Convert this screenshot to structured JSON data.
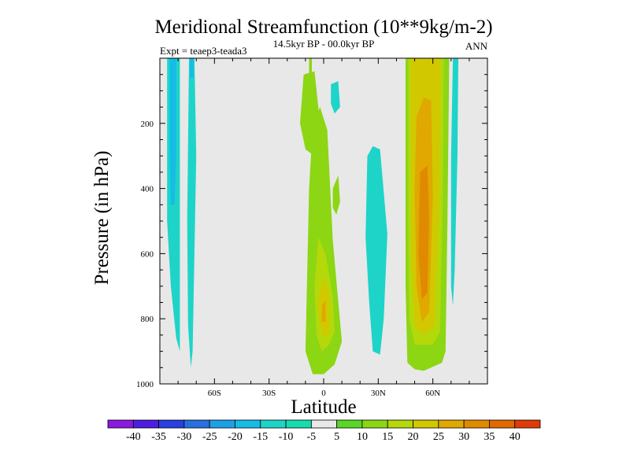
{
  "chart_data": {
    "type": "heatmap",
    "title": "Meridional Streamfunction (10**9kg/m-2)",
    "subtitle_center": "14.5kyr BP - 00.0kyr BP",
    "subtitle_left": "Expt = teaep3-teada3",
    "subtitle_right": "ANN",
    "xlabel": "Latitude",
    "ylabel": "Pressure (in hPa)",
    "xlim": [
      -90,
      90
    ],
    "ylim": [
      0,
      1000
    ],
    "y_inverted": true,
    "x_ticks": [
      {
        "value": -60,
        "label": "60S"
      },
      {
        "value": -30,
        "label": "30S"
      },
      {
        "value": 0,
        "label": "0"
      },
      {
        "value": 30,
        "label": "30N"
      },
      {
        "value": 60,
        "label": "60N"
      }
    ],
    "y_ticks": [
      {
        "value": 200,
        "label": "200"
      },
      {
        "value": 400,
        "label": "400"
      },
      {
        "value": 600,
        "label": "600"
      },
      {
        "value": 800,
        "label": "800"
      },
      {
        "value": 1000,
        "label": "1000"
      }
    ],
    "background_color": "#e8e8e8",
    "colorbar": {
      "levels": [
        "-40",
        "-35",
        "-30",
        "-25",
        "-20",
        "-15",
        "-10",
        "-5",
        "5",
        "10",
        "15",
        "20",
        "25",
        "30",
        "35",
        "40"
      ],
      "colors": [
        "#8a1ae0",
        "#4d1ee0",
        "#2840e0",
        "#2870e0",
        "#1ea0e6",
        "#14bce6",
        "#1ed4c8",
        "#16dcae",
        "#e8e8e8",
        "#5ad628",
        "#8cd614",
        "#b4d80a",
        "#d2c800",
        "#e0a800",
        "#e08a00",
        "#e06a00",
        "#e03c0a"
      ]
    },
    "regions": [
      {
        "name": "sh-band-1",
        "level": -10,
        "points": [
          [
            -86,
            0
          ],
          [
            -79,
            0
          ],
          [
            -79,
            900
          ],
          [
            -81,
            860
          ],
          [
            -84,
            700
          ],
          [
            -86,
            500
          ]
        ]
      },
      {
        "name": "sh-band-1-core",
        "level": -15,
        "points": [
          [
            -84.5,
            0
          ],
          [
            -81,
            0
          ],
          [
            -81,
            300
          ],
          [
            -82,
            450
          ],
          [
            -84,
            450
          ],
          [
            -84.5,
            300
          ]
        ]
      },
      {
        "name": "sh-band-2",
        "level": -10,
        "points": [
          [
            -74,
            0
          ],
          [
            -71,
            0
          ],
          [
            -70,
            300
          ],
          [
            -71,
            600
          ],
          [
            -72,
            900
          ],
          [
            -73,
            950
          ],
          [
            -74.5,
            820
          ],
          [
            -75,
            500
          ]
        ]
      },
      {
        "name": "sh-band-2-core",
        "level": -15,
        "points": [
          [
            -73.5,
            0
          ],
          [
            -71.5,
            0
          ],
          [
            -71.5,
            60
          ],
          [
            -73.5,
            60
          ]
        ]
      },
      {
        "name": "tropics-upper-left",
        "level": 10,
        "points": [
          [
            -11,
            50
          ],
          [
            -5,
            40
          ],
          [
            -2,
            200
          ],
          [
            -5,
            300
          ],
          [
            -10,
            280
          ],
          [
            -13,
            200
          ]
        ]
      },
      {
        "name": "tropics-upper-stem",
        "level": 10,
        "points": [
          [
            -8,
            0
          ],
          [
            -6.5,
            0
          ],
          [
            -6.5,
            90
          ],
          [
            -8,
            90
          ]
        ]
      },
      {
        "name": "tropics-upper-cap",
        "level": -10,
        "points": [
          [
            4,
            80
          ],
          [
            8,
            70
          ],
          [
            9,
            150
          ],
          [
            6,
            170
          ],
          [
            4,
            140
          ]
        ]
      },
      {
        "name": "hadley-main",
        "level": 10,
        "points": [
          [
            -8,
            400
          ],
          [
            -6,
            210
          ],
          [
            -2,
            150
          ],
          [
            2,
            220
          ],
          [
            5,
            560
          ],
          [
            10,
            870
          ],
          [
            6,
            940
          ],
          [
            0,
            970
          ],
          [
            -6,
            970
          ],
          [
            -10,
            900
          ]
        ]
      },
      {
        "name": "hadley-lobe",
        "level": 10,
        "points": [
          [
            5,
            400
          ],
          [
            8,
            360
          ],
          [
            9,
            440
          ],
          [
            7,
            480
          ],
          [
            5,
            460
          ]
        ]
      },
      {
        "name": "hadley-l15",
        "level": 15,
        "points": [
          [
            -5,
            700
          ],
          [
            -3,
            550
          ],
          [
            1,
            600
          ],
          [
            5,
            730
          ],
          [
            6,
            840
          ],
          [
            3,
            880
          ],
          [
            -1,
            900
          ],
          [
            -4,
            850
          ]
        ]
      },
      {
        "name": "hadley-l20",
        "level": 20,
        "points": [
          [
            -3,
            750
          ],
          [
            0,
            670
          ],
          [
            3,
            730
          ],
          [
            3,
            840
          ],
          [
            0,
            860
          ],
          [
            -2,
            820
          ]
        ]
      },
      {
        "name": "hadley-l25",
        "level": 25,
        "points": [
          [
            -1,
            760
          ],
          [
            1,
            740
          ],
          [
            1,
            810
          ],
          [
            -1,
            810
          ]
        ]
      },
      {
        "name": "nh-neg-cell",
        "level": -10,
        "points": [
          [
            24,
            300
          ],
          [
            27,
            270
          ],
          [
            31,
            280
          ],
          [
            35,
            540
          ],
          [
            33,
            800
          ],
          [
            31,
            910
          ],
          [
            27,
            900
          ],
          [
            25,
            750
          ],
          [
            23,
            550
          ]
        ]
      },
      {
        "name": "nh-ferrel",
        "level": 10,
        "points": [
          [
            45,
            0
          ],
          [
            69,
            0
          ],
          [
            68,
            500
          ],
          [
            67,
            900
          ],
          [
            65,
            935
          ],
          [
            55,
            960
          ],
          [
            50,
            955
          ],
          [
            46,
            935
          ],
          [
            45,
            700
          ]
        ]
      },
      {
        "name": "nh-ferrel-l15",
        "level": 15,
        "points": [
          [
            46.5,
            0
          ],
          [
            66,
            0
          ],
          [
            65.5,
            400
          ],
          [
            64,
            840
          ],
          [
            60,
            880
          ],
          [
            50,
            880
          ],
          [
            47,
            800
          ],
          [
            46.5,
            500
          ]
        ]
      },
      {
        "name": "nh-ferrel-l20",
        "level": 20,
        "points": [
          [
            48,
            0
          ],
          [
            64,
            0
          ],
          [
            63.5,
            400
          ],
          [
            61,
            820
          ],
          [
            55,
            850
          ],
          [
            50,
            820
          ],
          [
            48,
            600
          ]
        ]
      },
      {
        "name": "nh-ferrel-l25",
        "level": 25,
        "points": [
          [
            51,
            180
          ],
          [
            55,
            120
          ],
          [
            59,
            130
          ],
          [
            60,
            420
          ],
          [
            58,
            780
          ],
          [
            54,
            810
          ],
          [
            51,
            700
          ],
          [
            50,
            400
          ]
        ]
      },
      {
        "name": "nh-ferrel-l30",
        "level": 30,
        "points": [
          [
            53,
            350
          ],
          [
            57,
            330
          ],
          [
            58,
            500
          ],
          [
            57,
            720
          ],
          [
            54,
            740
          ],
          [
            52,
            600
          ]
        ]
      },
      {
        "name": "nh-neg-right",
        "level": -10,
        "points": [
          [
            71,
            0
          ],
          [
            74,
            0
          ],
          [
            73.5,
            300
          ],
          [
            72,
            650
          ],
          [
            71,
            760
          ],
          [
            70,
            700
          ],
          [
            70,
            300
          ]
        ]
      }
    ]
  }
}
